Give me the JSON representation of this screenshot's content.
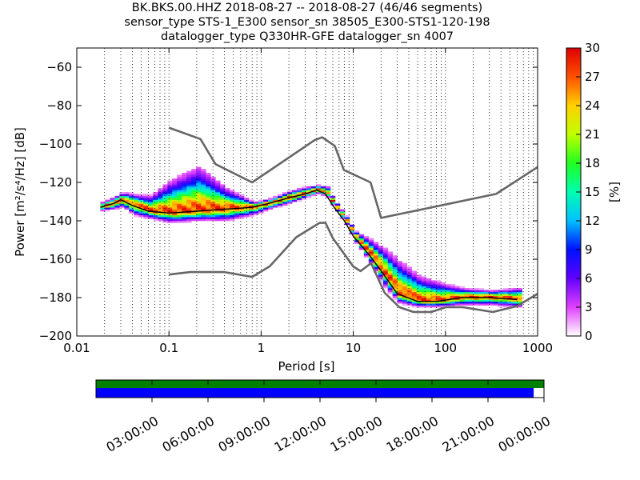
{
  "title": {
    "line1": "BK.BKS.00.HHZ   2018-08-27 -- 2018-08-27  (46/46 segments)",
    "line2": "sensor_type STS-1_E300 sensor_sn 38505_E300-STS1-120-198",
    "line3": "datalogger_type Q330HR-GFE datalogger_sn 4007"
  },
  "colorbar": {
    "label": "[%]",
    "ticks": [
      "0",
      "3",
      "6",
      "9",
      "12",
      "15",
      "18",
      "21",
      "24",
      "27",
      "30"
    ],
    "range": [
      0,
      30
    ]
  },
  "timeline": {
    "labels": [
      "03:00:00",
      "06:00:00",
      "09:00:00",
      "12:00:00",
      "15:00:00",
      "18:00:00",
      "21:00:00",
      "00:00:00"
    ],
    "data_bar_color": "#008000",
    "coverage_bar_color": "#0000ff",
    "coverage_fraction": 0.977
  },
  "chart_data": {
    "type": "heatmap",
    "title": "BK.BKS.00.HHZ   2018-08-27 -- 2018-08-27  (46/46 segments)",
    "xlabel": "Period [s]",
    "ylabel": "Power [m²/s⁴/Hz] [dB]",
    "xscale": "log",
    "xlim": [
      0.01,
      1000
    ],
    "ylim": [
      -200,
      -50
    ],
    "xticks": [
      "0.01",
      "0.1",
      "1",
      "10",
      "100",
      "1000"
    ],
    "yticks": [
      "−200",
      "−180",
      "−160",
      "−140",
      "−120",
      "−100",
      "−80",
      "−60"
    ],
    "grid": "dotted vertical",
    "series": [
      {
        "name": "NHNM",
        "color": "#666666",
        "x": [
          0.1,
          0.22,
          0.32,
          0.8,
          3.8,
          4.6,
          6.3,
          7.9,
          15.4,
          20,
          354.8,
          1000
        ],
        "y": [
          -91.5,
          -97.4,
          -110.5,
          -120,
          -98,
          -96.5,
          -101,
          -113.5,
          -120,
          -138.5,
          -126,
          -112
        ]
      },
      {
        "name": "NLNM",
        "color": "#666666",
        "x": [
          0.1,
          0.17,
          0.4,
          0.8,
          1.24,
          2.4,
          4.3,
          5,
          6,
          10,
          12,
          15.6,
          21.9,
          31.6,
          45,
          70,
          101,
          154,
          328,
          600,
          1000
        ],
        "y": [
          -168,
          -166.7,
          -166.7,
          -169.2,
          -163.7,
          -148.6,
          -141.1,
          -141.1,
          -149,
          -163.8,
          -166.2,
          -162.1,
          -177.5,
          -185,
          -187.5,
          -187.5,
          -185,
          -185,
          -187.5,
          -184.4,
          -178
        ]
      }
    ],
    "ppsd_mode": {
      "x": [
        0.018,
        0.025,
        0.03,
        0.04,
        0.06,
        0.1,
        0.2,
        0.4,
        0.8,
        1.2,
        2,
        3,
        4,
        5,
        6,
        8,
        10,
        15,
        20,
        30,
        50,
        80,
        150,
        300,
        600
      ],
      "y": [
        -133,
        -131,
        -129,
        -132,
        -135,
        -136,
        -135,
        -134,
        -133,
        -131,
        -128,
        -126,
        -124,
        -126,
        -132,
        -140,
        -148,
        -158,
        -166,
        -178,
        -182,
        -182,
        -180,
        -180,
        -181
      ]
    },
    "spread_high": [
      -131,
      -128,
      -126,
      -127,
      -128,
      -120,
      -113,
      -124,
      -131,
      -129,
      -125,
      -123,
      -122,
      -123,
      -130,
      -138,
      -146,
      -151,
      -155,
      -162,
      -170,
      -173,
      -176,
      -177,
      -176
    ],
    "spread_low": [
      -135,
      -134,
      -133,
      -137,
      -139,
      -141,
      -140,
      -140,
      -137,
      -134,
      -131,
      -128,
      -126,
      -128,
      -134,
      -142,
      -151,
      -163,
      -173,
      -183,
      -185,
      -185,
      -184,
      -184,
      -185
    ]
  }
}
